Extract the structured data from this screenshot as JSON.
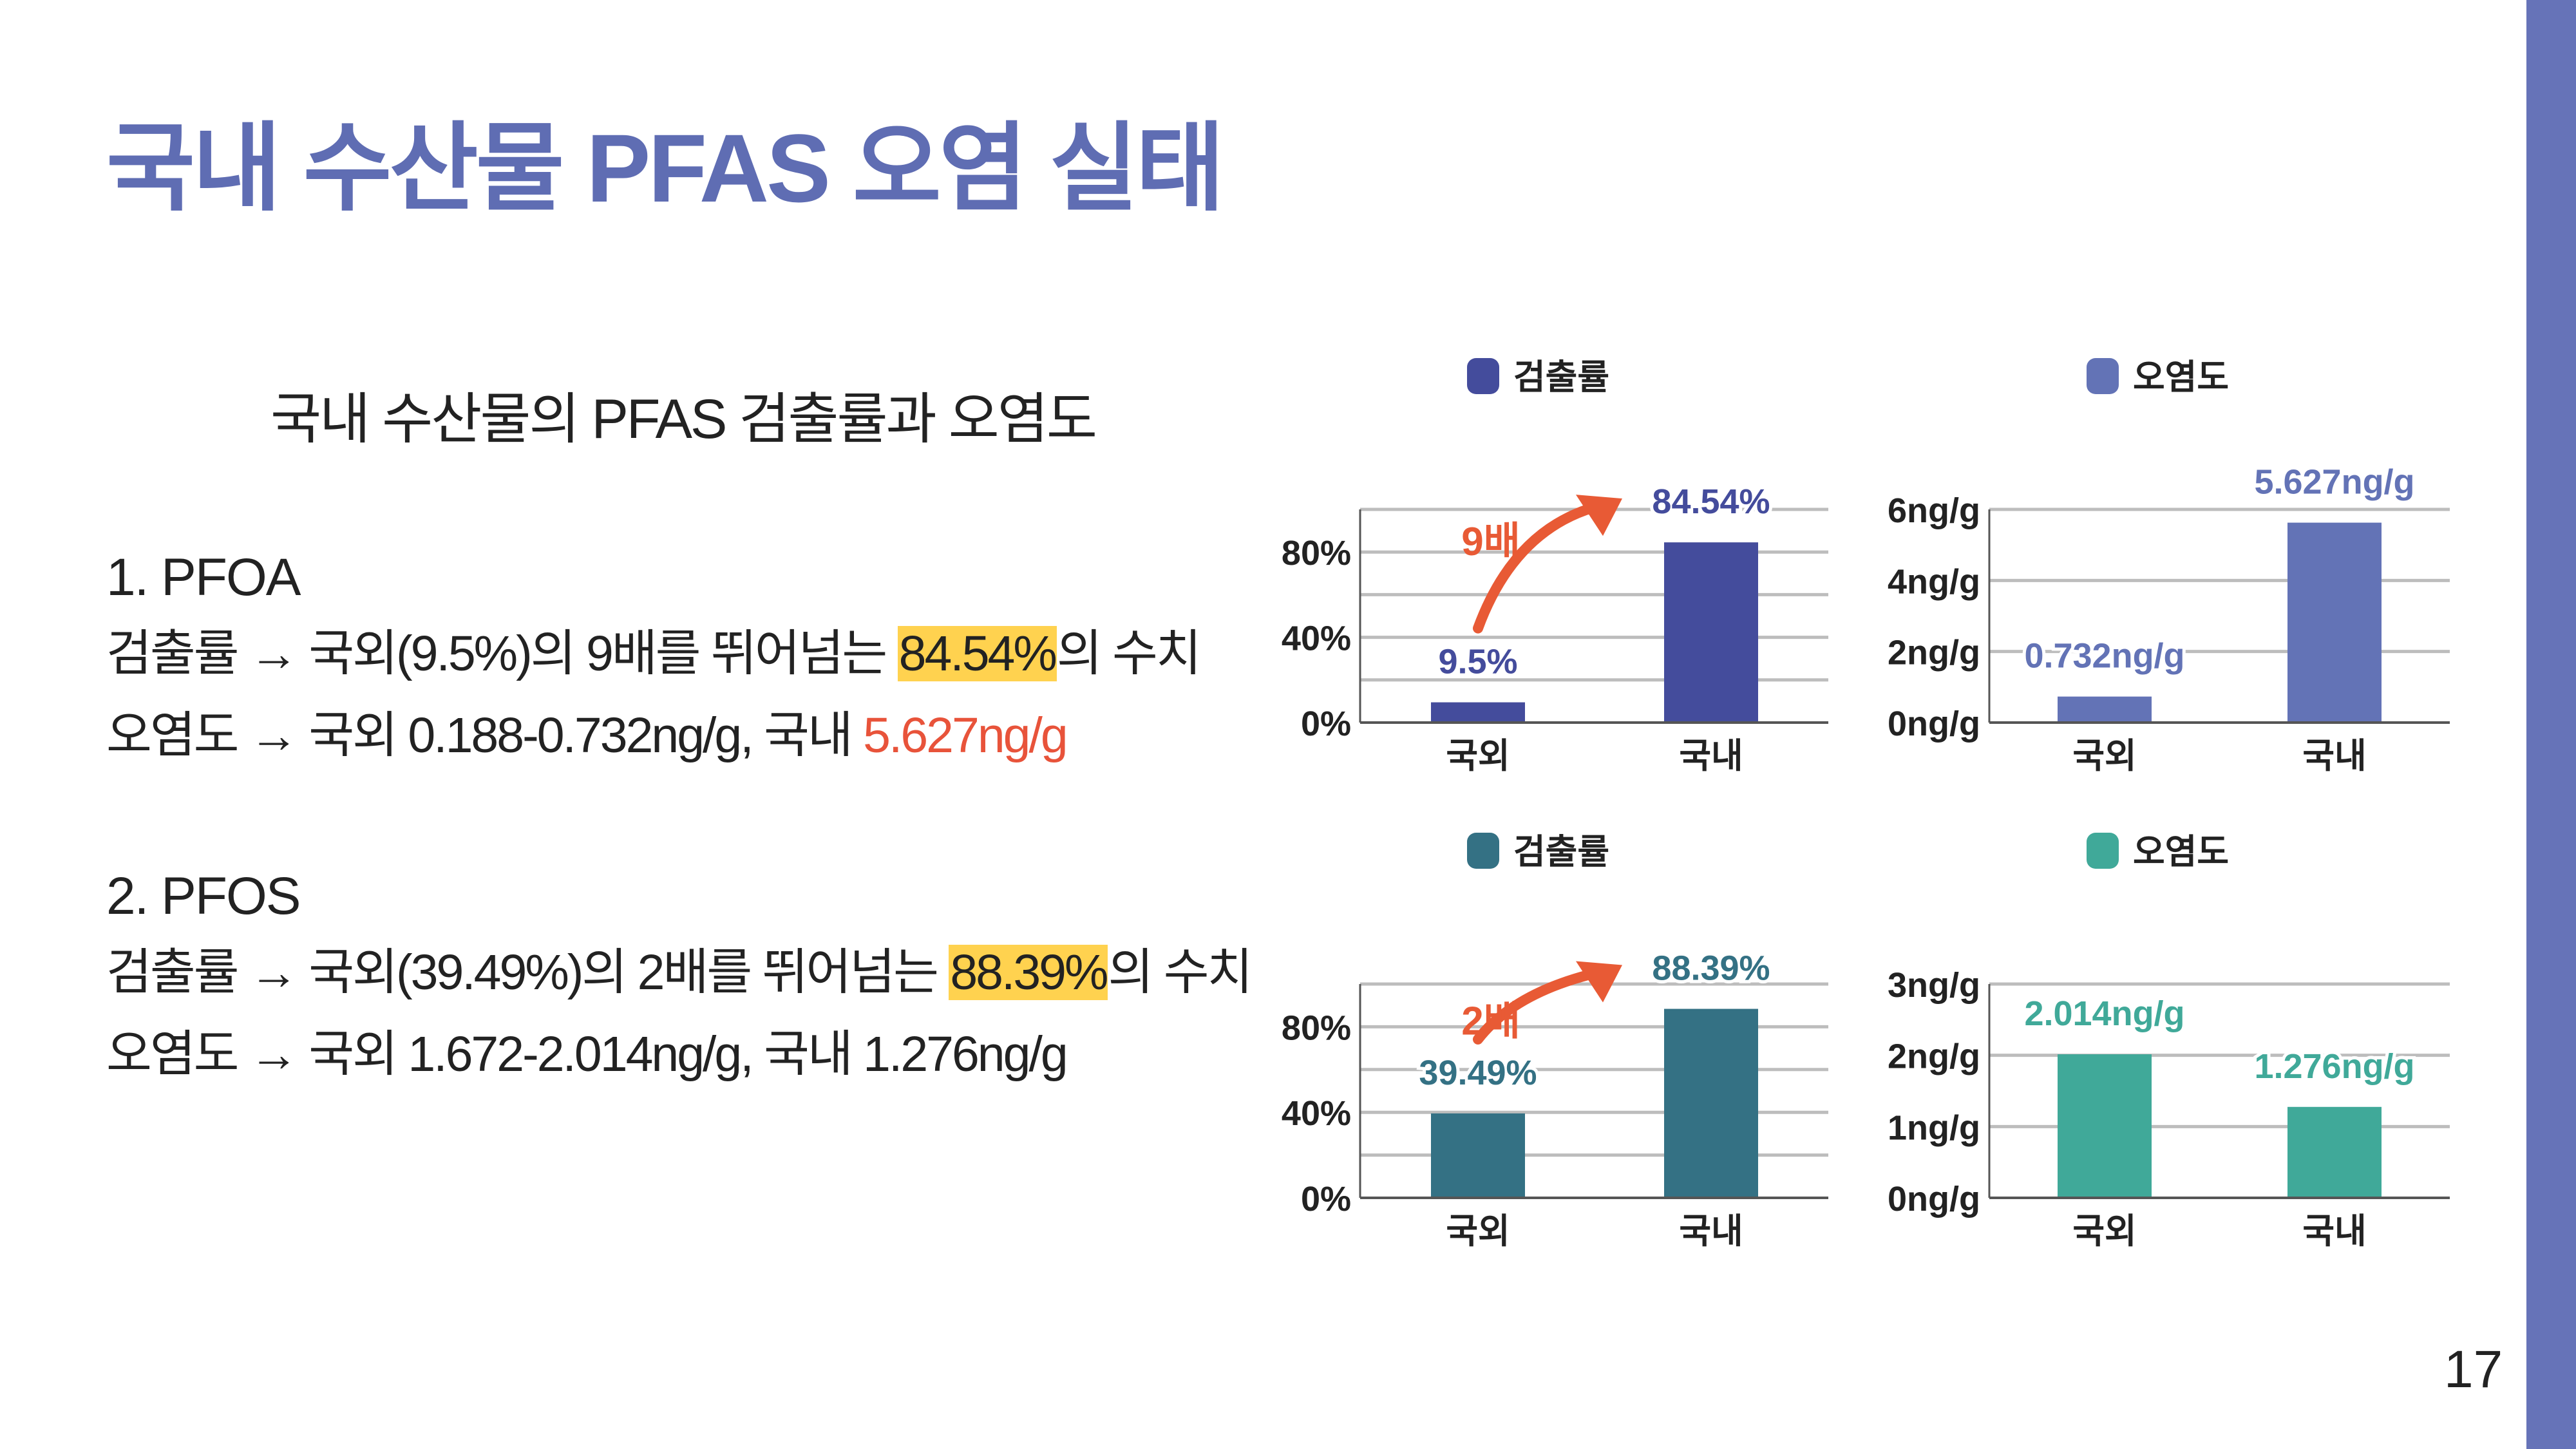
{
  "title": "국내 수산물 PFAS 오염 실태",
  "subtitle": "국내 수산물의 PFAS 검출률과 오염도",
  "page_number": "17",
  "colors": {
    "title": "#5f6db3",
    "sidebar": "#6673b8",
    "highlight": "#ffd24f",
    "emphasis": "#e8533a",
    "arrow": "#e85a35"
  },
  "sections": [
    {
      "heading": "1. PFOA",
      "line1": {
        "prefix": "검출률 → 국외(9.5%)의 9배를 뛰어넘는 ",
        "highlight": "84.54%",
        "suffix": "의 수치"
      },
      "line2": {
        "prefix": "오염도 → 국외 0.188-0.732ng/g, 국내 ",
        "emphasis": "5.627ng/g"
      }
    },
    {
      "heading": "2. PFOS",
      "line1": {
        "prefix": "검출률 → 국외(39.49%)의 2배를 뛰어넘는 ",
        "highlight": "88.39%",
        "suffix": "의 수치"
      },
      "line2": {
        "prefix": "오염도 → 국외 1.672-2.014ng/g, 국내 1.276ng/g",
        "emphasis": ""
      }
    }
  ],
  "chart_data": [
    {
      "type": "bar",
      "legend": "검출률",
      "legend_placement": "top",
      "color": "#444c9c",
      "label_color": "#444c9c",
      "categories": [
        "국외",
        "국내"
      ],
      "values": [
        9.5,
        84.54
      ],
      "data_labels": [
        "9.5%",
        "84.54%"
      ],
      "ylim": [
        0,
        100
      ],
      "yticks": [
        0,
        40,
        80
      ],
      "ytick_labels": [
        "0%",
        "40%",
        "80%"
      ],
      "grid_step": 20,
      "grid": true,
      "annotation": {
        "text": "9배",
        "type": "arrow"
      }
    },
    {
      "type": "bar",
      "legend": "오염도",
      "legend_placement": "top",
      "color": "#6373b6",
      "label_color": "#6373b6",
      "categories": [
        "국외",
        "국내"
      ],
      "values": [
        0.732,
        5.627
      ],
      "data_labels": [
        "0.732ng/g",
        "5.627ng/g"
      ],
      "ylim": [
        0,
        6
      ],
      "yticks": [
        0,
        2,
        4,
        6
      ],
      "ytick_labels": [
        "0ng/g",
        "2ng/g",
        "4ng/g",
        "6ng/g"
      ],
      "grid_step": 2,
      "grid": true
    },
    {
      "type": "bar",
      "legend": "검출률",
      "legend_placement": "top",
      "color": "#347184",
      "label_color": "#347184",
      "categories": [
        "국외",
        "국내"
      ],
      "values": [
        39.49,
        88.39
      ],
      "data_labels": [
        "39.49%",
        "88.39%"
      ],
      "ylim": [
        0,
        100
      ],
      "yticks": [
        0,
        40,
        80
      ],
      "ytick_labels": [
        "0%",
        "40%",
        "80%"
      ],
      "grid_step": 20,
      "grid": true,
      "annotation": {
        "text": "2배",
        "type": "arrow"
      }
    },
    {
      "type": "bar",
      "legend": "오염도",
      "legend_placement": "top",
      "color": "#40a999",
      "label_color": "#40a999",
      "categories": [
        "국외",
        "국내"
      ],
      "values": [
        2.014,
        1.276
      ],
      "data_labels": [
        "2.014ng/g",
        "1.276ng/g"
      ],
      "ylim": [
        0,
        3
      ],
      "yticks": [
        0,
        1,
        2,
        3
      ],
      "ytick_labels": [
        "0ng/g",
        "1ng/g",
        "2ng/g",
        "3ng/g"
      ],
      "grid_step": 1,
      "grid": true
    }
  ]
}
